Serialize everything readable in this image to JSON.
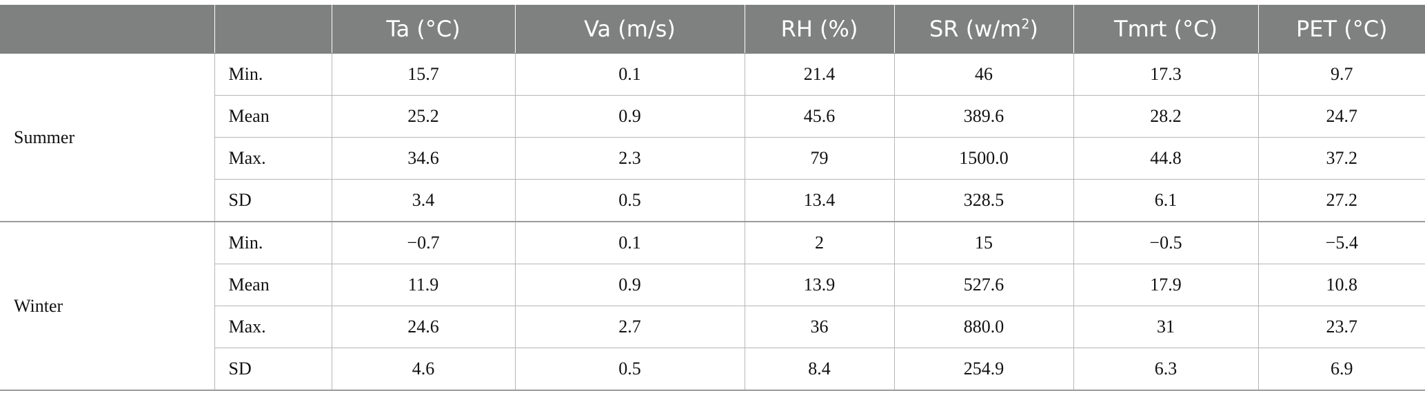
{
  "table": {
    "headers": [
      "",
      "",
      "Ta (°C)",
      "Va (m/s)",
      "RH (%)",
      "SR (w/m",
      "Tmrt (°C)",
      "PET (°C)"
    ],
    "header_sr_superscript": "2",
    "header_sr_suffix": ")",
    "groups": [
      {
        "season": "Summer",
        "rows": [
          {
            "stat": "Min.",
            "values": [
              "15.7",
              "0.1",
              "21.4",
              "46",
              "17.3",
              "9.7"
            ]
          },
          {
            "stat": "Mean",
            "values": [
              "25.2",
              "0.9",
              "45.6",
              "389.6",
              "28.2",
              "24.7"
            ]
          },
          {
            "stat": "Max.",
            "values": [
              "34.6",
              "2.3",
              "79",
              "1500.0",
              "44.8",
              "37.2"
            ]
          },
          {
            "stat": "SD",
            "values": [
              "3.4",
              "0.5",
              "13.4",
              "328.5",
              "6.1",
              "27.2"
            ]
          }
        ]
      },
      {
        "season": "Winter",
        "rows": [
          {
            "stat": "Min.",
            "values": [
              "−0.7",
              "0.1",
              "2",
              "15",
              "−0.5",
              "−5.4"
            ]
          },
          {
            "stat": "Mean",
            "values": [
              "11.9",
              "0.9",
              "13.9",
              "527.6",
              "17.9",
              "10.8"
            ]
          },
          {
            "stat": "Max.",
            "values": [
              "24.6",
              "2.7",
              "36",
              "880.0",
              "31",
              "23.7"
            ]
          },
          {
            "stat": "SD",
            "values": [
              "4.6",
              "0.5",
              "8.4",
              "254.9",
              "6.3",
              "6.9"
            ]
          }
        ]
      }
    ]
  }
}
